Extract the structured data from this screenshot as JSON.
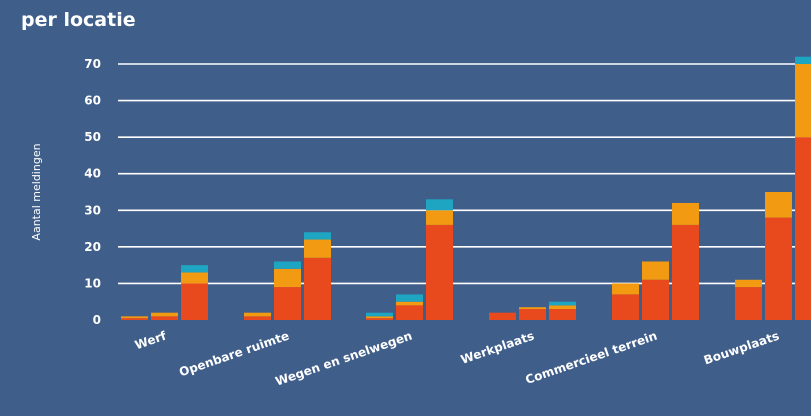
{
  "header": {
    "title": "per locatie"
  },
  "colors": {
    "background": "#3f5e8a",
    "grid": "#ffffff",
    "segment_bottom": "#e8491d",
    "segment_middle": "#f29a12",
    "segment_top": "#1ea5c1"
  },
  "chart_data": {
    "type": "bar",
    "stacked": true,
    "ylabel": "Aantal meldingen",
    "ylim": [
      0,
      72
    ],
    "yticks": [
      0,
      10,
      20,
      30,
      40,
      50,
      60,
      70
    ],
    "grid": true,
    "categories": [
      "Werf",
      "Openbare ruimte",
      "Wegen en snelwegen",
      "Werkplaats",
      "Commercieel terrein",
      "Bouwplaats"
    ],
    "bars_per_category": 3,
    "bars": [
      {
        "category": "Werf",
        "segments": [
          0.5,
          0.5,
          0
        ]
      },
      {
        "category": "Werf",
        "segments": [
          1,
          1,
          0
        ]
      },
      {
        "category": "Werf",
        "segments": [
          10,
          3,
          2
        ]
      },
      {
        "category": "Openbare ruimte",
        "segments": [
          1,
          1,
          0
        ]
      },
      {
        "category": "Openbare ruimte",
        "segments": [
          9,
          5,
          2
        ]
      },
      {
        "category": "Openbare ruimte",
        "segments": [
          17,
          5,
          2
        ]
      },
      {
        "category": "Wegen en snelwegen",
        "segments": [
          0.5,
          0.5,
          1
        ]
      },
      {
        "category": "Wegen en snelwegen",
        "segments": [
          4,
          1,
          2
        ]
      },
      {
        "category": "Wegen en snelwegen",
        "segments": [
          26,
          4,
          3
        ]
      },
      {
        "category": "Werkplaats",
        "segments": [
          2,
          0,
          0
        ]
      },
      {
        "category": "Werkplaats",
        "segments": [
          3,
          0.5,
          0
        ]
      },
      {
        "category": "Werkplaats",
        "segments": [
          3,
          1,
          1
        ]
      },
      {
        "category": "Commercieel terrein",
        "segments": [
          7,
          3,
          0
        ]
      },
      {
        "category": "Commercieel terrein",
        "segments": [
          11,
          5,
          0
        ]
      },
      {
        "category": "Commercieel terrein",
        "segments": [
          26,
          6,
          0
        ]
      },
      {
        "category": "Bouwplaats",
        "segments": [
          9,
          2,
          0
        ]
      },
      {
        "category": "Bouwplaats",
        "segments": [
          28,
          7,
          0
        ]
      },
      {
        "category": "Bouwplaats",
        "segments": [
          50,
          20,
          2
        ]
      }
    ]
  }
}
